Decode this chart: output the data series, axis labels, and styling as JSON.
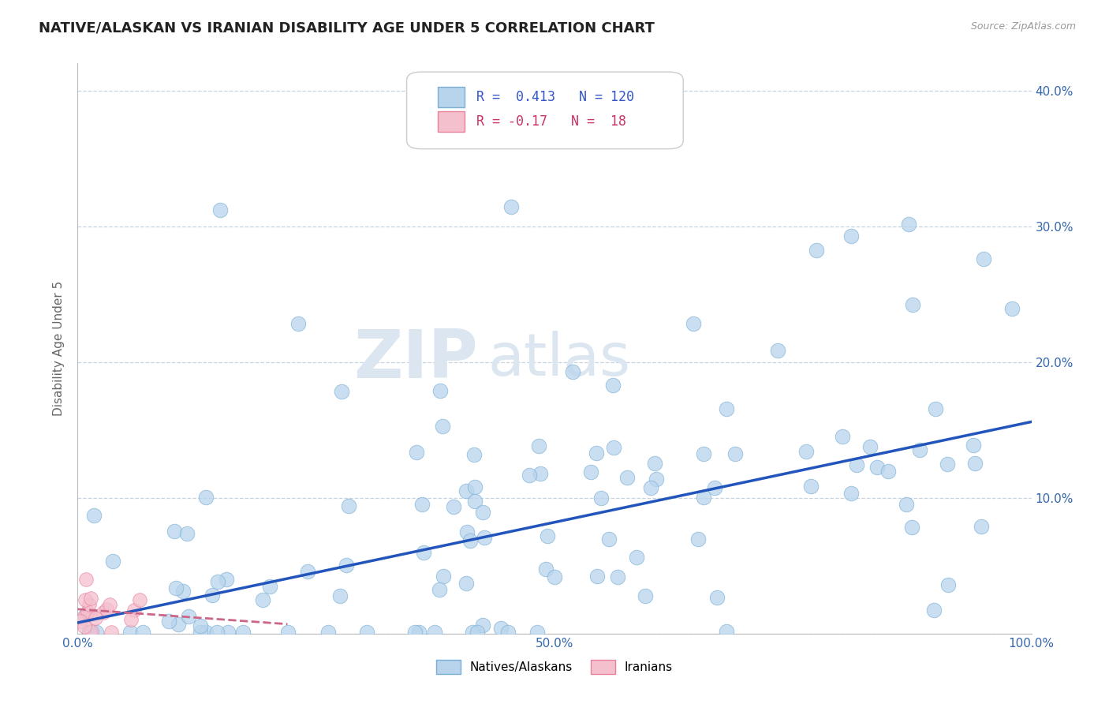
{
  "title": "NATIVE/ALASKAN VS IRANIAN DISABILITY AGE UNDER 5 CORRELATION CHART",
  "source": "Source: ZipAtlas.com",
  "ylabel": "Disability Age Under 5",
  "xlim": [
    0.0,
    1.0
  ],
  "ylim": [
    0.0,
    0.42
  ],
  "x_ticks": [
    0.0,
    0.5,
    1.0
  ],
  "x_tick_labels": [
    "0.0%",
    "50.0%",
    "100.0%"
  ],
  "y_ticks": [
    0.0,
    0.1,
    0.2,
    0.3,
    0.4
  ],
  "y_tick_labels": [
    "",
    "10.0%",
    "20.0%",
    "30.0%",
    "40.0%"
  ],
  "native_R": 0.413,
  "native_N": 120,
  "iranian_R": -0.17,
  "iranian_N": 18,
  "native_color": "#b8d4ed",
  "native_edge_color": "#7aafd4",
  "iranian_color": "#f5c0ce",
  "iranian_edge_color": "#e8809a",
  "native_line_color": "#2255bb",
  "iranian_line_color": "#cc6688",
  "background_color": "#ffffff",
  "grid_color": "#c8d4e0",
  "watermark_color": "#dce6f0",
  "title_fontsize": 13,
  "axis_label_fontsize": 11,
  "tick_fontsize": 11,
  "legend_fontsize": 12,
  "native_seed": 7,
  "iranian_seed": 13,
  "native_line_intercept": 0.008,
  "native_line_slope": 0.148,
  "iranian_line_intercept": 0.018,
  "iranian_line_slope": -0.05
}
